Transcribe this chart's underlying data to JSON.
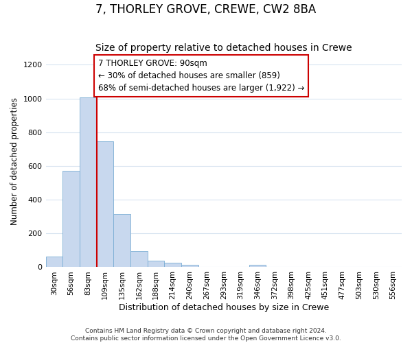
{
  "title": "7, THORLEY GROVE, CREWE, CW2 8BA",
  "subtitle": "Size of property relative to detached houses in Crewe",
  "xlabel": "Distribution of detached houses by size in Crewe",
  "ylabel": "Number of detached properties",
  "footer_line1": "Contains HM Land Registry data © Crown copyright and database right 2024.",
  "footer_line2": "Contains public sector information licensed under the Open Government Licence v3.0.",
  "bin_labels": [
    "30sqm",
    "56sqm",
    "83sqm",
    "109sqm",
    "135sqm",
    "162sqm",
    "188sqm",
    "214sqm",
    "240sqm",
    "267sqm",
    "293sqm",
    "319sqm",
    "346sqm",
    "372sqm",
    "398sqm",
    "425sqm",
    "451sqm",
    "477sqm",
    "503sqm",
    "530sqm",
    "556sqm"
  ],
  "bar_values": [
    62,
    570,
    1005,
    745,
    315,
    95,
    38,
    25,
    15,
    0,
    0,
    0,
    15,
    0,
    0,
    0,
    0,
    0,
    0,
    0,
    0
  ],
  "bar_color": "#c8d8ee",
  "bar_edge_color": "#7aadd4",
  "vline_x": 2.5,
  "vline_color": "#cc0000",
  "annotation_text": "7 THORLEY GROVE: 90sqm\n← 30% of detached houses are smaller (859)\n68% of semi-detached houses are larger (1,922) →",
  "annotation_box_facecolor": "#ffffff",
  "annotation_box_edgecolor": "#cc0000",
  "ylim": [
    0,
    1260
  ],
  "yticks": [
    0,
    200,
    400,
    600,
    800,
    1000,
    1200
  ],
  "background_color": "#ffffff",
  "grid_color": "#d8e4f0",
  "title_fontsize": 12,
  "subtitle_fontsize": 10,
  "annotation_fontsize": 8.5,
  "ylabel_fontsize": 8.5,
  "xlabel_fontsize": 9,
  "tick_fontsize": 7.5,
  "footer_fontsize": 6.5
}
